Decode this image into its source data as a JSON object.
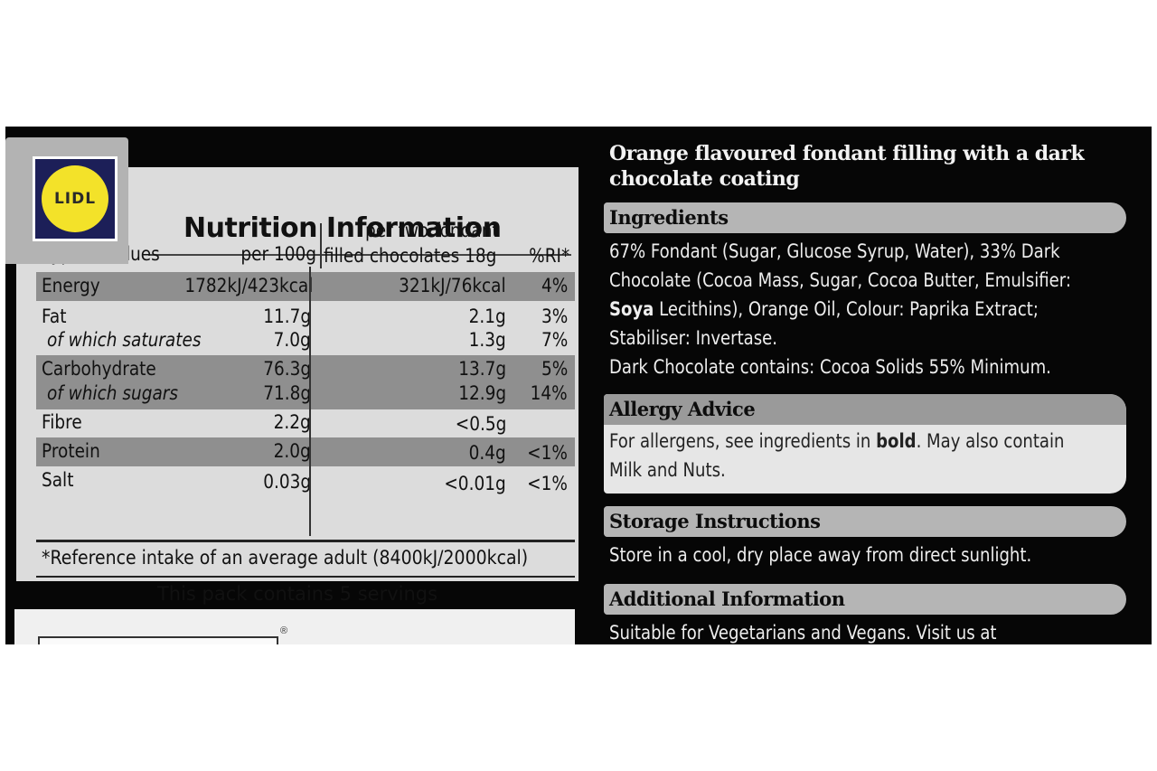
{
  "brand": {
    "logo_text": "LIDL"
  },
  "nutrition": {
    "title": "Nutrition Information",
    "columns": {
      "typical": "Typical values",
      "per100": "per 100g",
      "perServing_line1": "per two fondant",
      "perServing_line2": "filled chocolates 18g",
      "ri": "%RI*"
    },
    "rows": [
      {
        "label": "Energy",
        "per100": "1782kJ/423kcal",
        "serving": "321kJ/76kcal",
        "ri": "4%"
      },
      {
        "label": "Fat",
        "per100": "11.7g",
        "serving": "2.1g",
        "ri": "3%"
      },
      {
        "label": "of which saturates",
        "per100": "7.0g",
        "serving": "1.3g",
        "ri": "7%"
      },
      {
        "label": "Carbohydrate",
        "per100": "76.3g",
        "serving": "13.7g",
        "ri": "5%"
      },
      {
        "label": "of which sugars",
        "per100": "71.8g",
        "serving": "12.9g",
        "ri": "14%"
      },
      {
        "label": "Fibre",
        "per100": "2.2g",
        "serving": "<0.5g",
        "ri": ""
      },
      {
        "label": "Protein",
        "per100": "2.0g",
        "serving": "0.4g",
        "ri": "<1%"
      },
      {
        "label": "Salt",
        "per100": "0.03g",
        "serving": "<0.01g",
        "ri": "<1%"
      }
    ],
    "footnote": "*Reference intake of an average adult (8400kJ/2000kcal)",
    "servings": "This pack contains 5 servings",
    "reg_mark": "®"
  },
  "product": {
    "title": "Orange flavoured fondant filling with a dark chocolate coating"
  },
  "ingredients": {
    "heading": "Ingredients",
    "line1": "67% Fondant (Sugar, Glucose Syrup, Water), 33% Dark",
    "line2": "Chocolate (Cocoa Mass, Sugar, Cocoa Butter, Emulsifier:",
    "line3_bold": "Soya",
    "line3_rest": " Lecithins), Orange Oil, Colour: Paprika Extract;",
    "line4": "Stabiliser: Invertase.",
    "line5": "Dark Chocolate contains: Cocoa Solids 55% Minimum."
  },
  "allergy": {
    "heading": "Allergy Advice",
    "text_pre": "For allergens, see ingredients in ",
    "text_bold": "bold",
    "text_post": ". May also contain",
    "line2": "Milk and Nuts."
  },
  "storage": {
    "heading": "Storage Instructions",
    "text": "Store in a cool, dry place away from direct sunlight."
  },
  "additional": {
    "heading": "Additional Information",
    "text": "Suitable for Vegetarians and Vegans. Visit us at"
  }
}
